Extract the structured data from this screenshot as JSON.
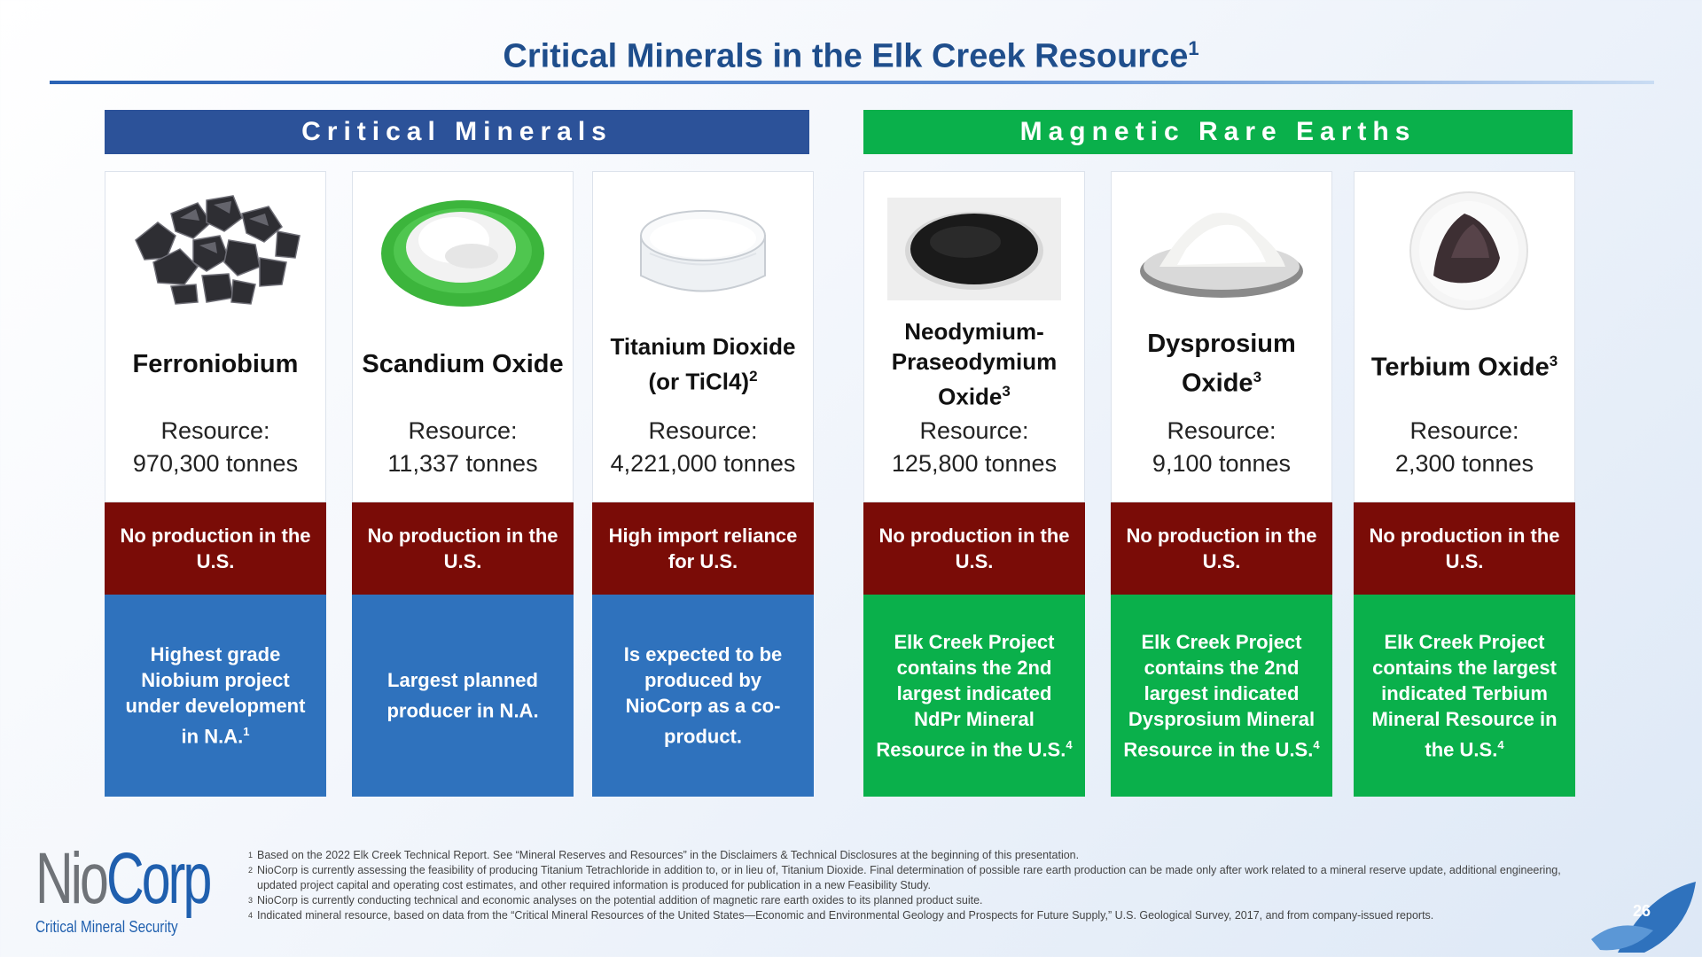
{
  "title": {
    "text": "Critical Minerals in the Elk Creek Resource",
    "sup": "1"
  },
  "groups": {
    "critical": "Critical Minerals",
    "magnetic": "Magnetic Rare Earths"
  },
  "cards": [
    {
      "name": "Ferroniobium",
      "sup": "",
      "resource_label": "Resource:",
      "resource_value": "970,300 tonnes",
      "status": "No production in the U.S.",
      "desc": "Highest grade Niobium project under development in N.A.",
      "desc_sup": "1",
      "image": "ferroniobium-lumps-icon"
    },
    {
      "name": "Scandium Oxide",
      "sup": "",
      "resource_label": "Resource:",
      "resource_value": "11,337 tonnes",
      "status": "No production in the U.S.",
      "desc": "Largest planned producer in N.A.",
      "desc_sup": "",
      "image": "scandium-powder-icon"
    },
    {
      "name": "Titanium Dioxide (or TiCl4)",
      "sup": "2",
      "resource_label": "Resource:",
      "resource_value": "4,221,000 tonnes",
      "status": "High import reliance for U.S.",
      "desc": "Is expected to be produced by NioCorp as a co-product.",
      "desc_sup": "",
      "image": "titanium-dish-icon"
    },
    {
      "name": "Neodymium-Praseodymium Oxide",
      "sup": "3",
      "resource_label": "Resource:",
      "resource_value": "125,800 tonnes",
      "status": "No production in the U.S.",
      "desc": "Elk Creek Project contains the 2nd largest indicated NdPr Mineral Resource in the U.S.",
      "desc_sup": "4",
      "image": "ndpr-black-powder-icon"
    },
    {
      "name": "Dysprosium Oxide",
      "sup": "3",
      "resource_label": "Resource:",
      "resource_value": "9,100 tonnes",
      "status": "No production in the U.S.",
      "desc": "Elk Creek Project contains the 2nd largest indicated Dysprosium Mineral Resource in the U.S.",
      "desc_sup": "4",
      "image": "dysprosium-powder-icon"
    },
    {
      "name": "Terbium Oxide",
      "sup": "3",
      "resource_label": "Resource:",
      "resource_value": "2,300 tonnes",
      "status": "No production in the U.S.",
      "desc": "Elk Creek Project contains the largest indicated Terbium Mineral Resource in the U.S.",
      "desc_sup": "4",
      "image": "terbium-powder-icon"
    }
  ],
  "footnotes": [
    {
      "num": "1",
      "text": "Based on the 2022 Elk Creek Technical Report. See “Mineral Reserves and Resources” in the Disclaimers & Technical Disclosures at the beginning of this presentation."
    },
    {
      "num": "2",
      "text": "NioCorp is currently assessing the feasibility of producing Titanium Tetrachloride in addition to, or in lieu of, Titanium Dioxide. Final determination of possible rare earth production can be made only after work related to a mineral reserve update, additional engineering, updated project capital and operating cost estimates, and other required information is produced for publication in a new Feasibility Study."
    },
    {
      "num": "3",
      "text": "NioCorp is currently conducting technical and economic analyses on the potential addition of magnetic rare earth oxides to its planned product suite."
    },
    {
      "num": "4",
      "text": "Indicated mineral resource, based on data from the “Critical Mineral Resources of the United States—Economic and Environmental Geology and Prospects for Future Supply,” U.S. Geological Survey, 2017, and from company-issued reports."
    }
  ],
  "logo": {
    "nio": "Nio",
    "corp": "Corp",
    "tagline": "Critical Mineral Security"
  },
  "page_number": "26",
  "colors": {
    "title": "#1f4e8c",
    "critical_header": "#2c5299",
    "magnetic_green": "#0ab04b",
    "status_red": "#7a0c07",
    "desc_blue": "#2f72bd"
  }
}
